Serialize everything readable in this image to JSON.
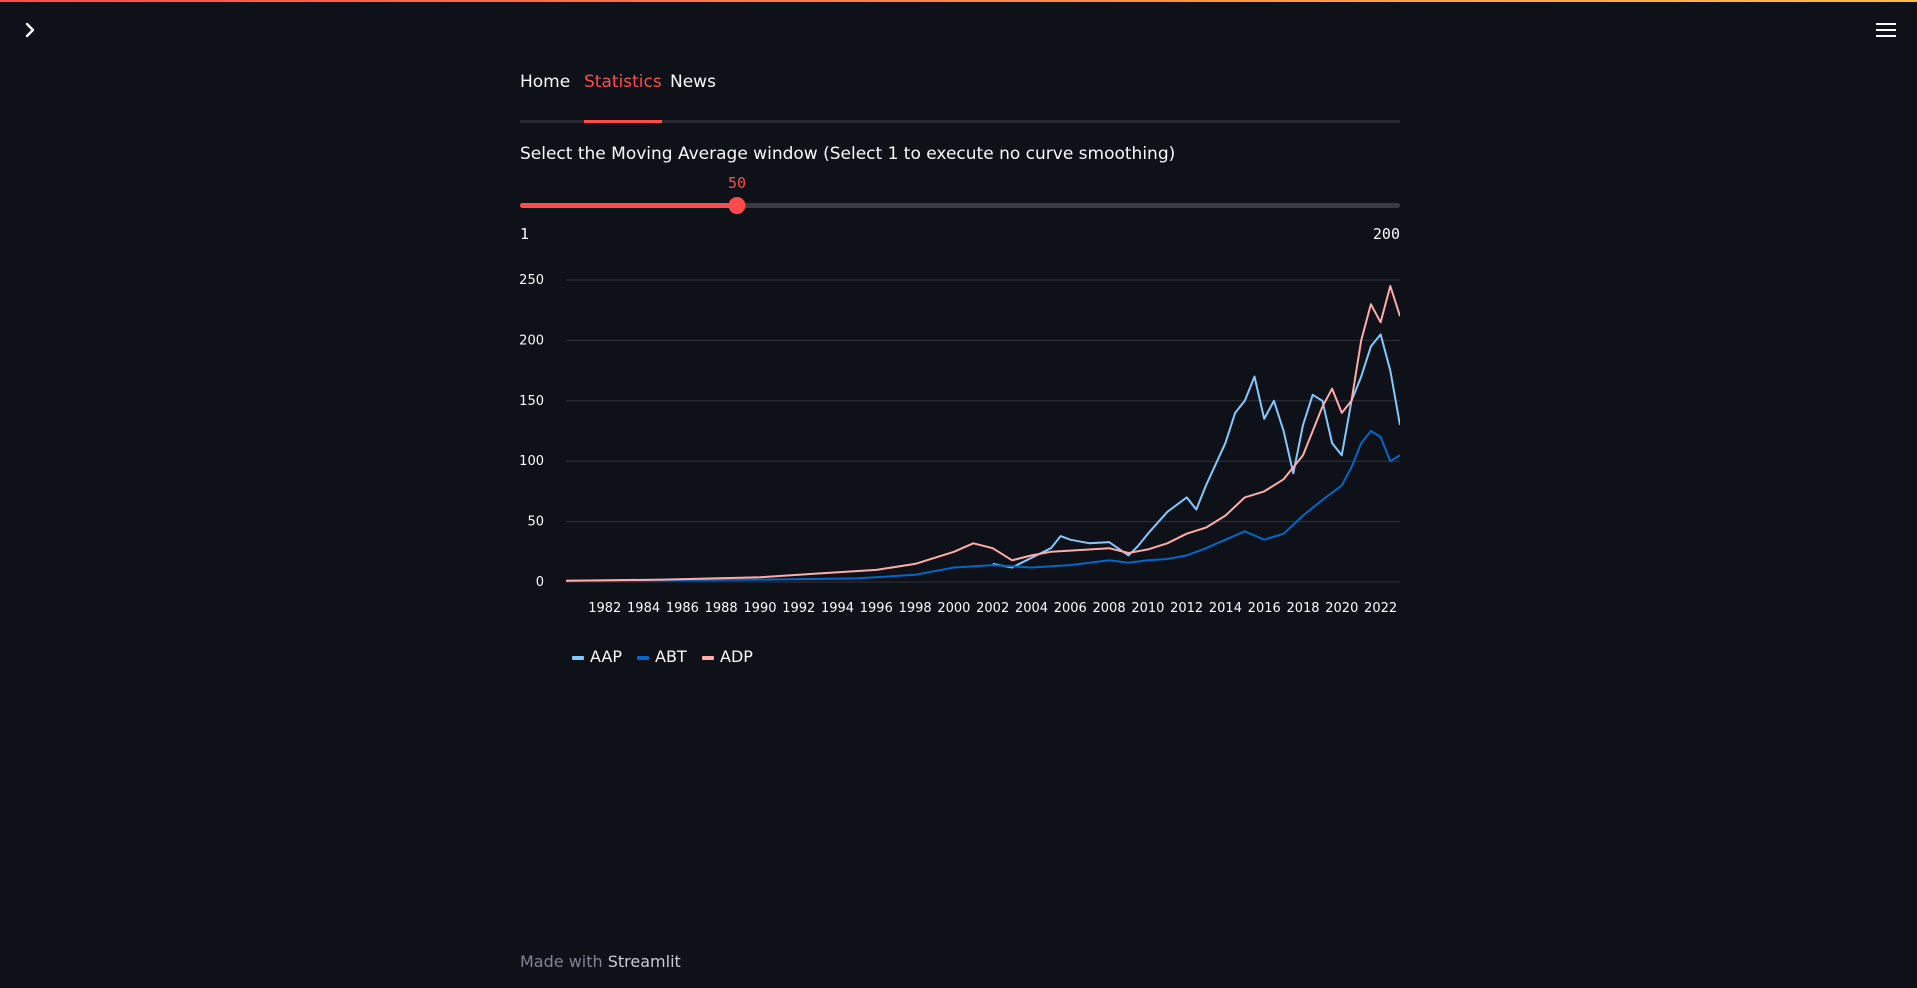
{
  "app": {
    "tabs": [
      {
        "label": "Home",
        "active": false
      },
      {
        "label": "Statistics",
        "active": true
      },
      {
        "label": "News",
        "active": false
      }
    ],
    "slider": {
      "label": "Select the Moving Average window (Select 1 to execute no curve smoothing)",
      "value": "50",
      "min": "1",
      "max": "200"
    },
    "footer": {
      "prefix": "Made with",
      "brand": "Streamlit"
    },
    "icons": {
      "sidebar_toggle": "chevron-right-icon",
      "menu": "hamburger-menu-icon"
    },
    "colors": {
      "background": "#0e1117",
      "accent": "#ff4b4b"
    }
  },
  "chart_data": {
    "type": "line",
    "title": "",
    "xlabel": "",
    "ylabel": "",
    "xlim": [
      1980,
      2023
    ],
    "ylim": [
      0,
      250
    ],
    "yticks": [
      0,
      50,
      100,
      150,
      200,
      250
    ],
    "xticks": [
      "1982",
      "1984",
      "1986",
      "1988",
      "1990",
      "1992",
      "1994",
      "1996",
      "1998",
      "2000",
      "2002",
      "2004",
      "2006",
      "2008",
      "2010",
      "2012",
      "2014",
      "2016",
      "2018",
      "2020",
      "2022"
    ],
    "grid": true,
    "legend": "bottom-left",
    "series": [
      {
        "name": "AAP",
        "color": "#83c9ff",
        "x": [
          2002.0,
          2003.0,
          2004.0,
          2005.0,
          2005.5,
          2006.0,
          2007.0,
          2008.0,
          2009.0,
          2009.5,
          2010.0,
          2011.0,
          2012.0,
          2012.5,
          2013.0,
          2014.0,
          2014.5,
          2015.0,
          2015.5,
          2016.0,
          2016.5,
          2017.0,
          2017.5,
          2018.0,
          2018.5,
          2019.0,
          2019.5,
          2020.0,
          2020.5,
          2021.0,
          2021.5,
          2022.0,
          2022.5,
          2023.0
        ],
        "y": [
          15,
          12,
          20,
          28,
          38,
          35,
          32,
          33,
          22,
          30,
          40,
          58,
          70,
          60,
          80,
          115,
          140,
          150,
          170,
          135,
          150,
          125,
          90,
          130,
          155,
          150,
          115,
          105,
          150,
          170,
          195,
          205,
          175,
          130
        ]
      },
      {
        "name": "ABT",
        "color": "#0068c9",
        "x": [
          1980.0,
          1985.0,
          1990.0,
          1995.0,
          1998.0,
          2000.0,
          2002.0,
          2004.0,
          2006.0,
          2008.0,
          2009.0,
          2010.0,
          2011.0,
          2012.0,
          2013.0,
          2014.0,
          2015.0,
          2016.0,
          2017.0,
          2018.0,
          2019.0,
          2020.0,
          2020.5,
          2021.0,
          2021.5,
          2022.0,
          2022.5,
          2023.0
        ],
        "y": [
          1,
          1.5,
          2,
          3,
          6,
          12,
          14,
          12,
          14,
          18,
          16,
          18,
          19,
          22,
          28,
          35,
          42,
          35,
          40,
          55,
          68,
          80,
          95,
          115,
          125,
          120,
          100,
          105
        ]
      },
      {
        "name": "ADP",
        "color": "#ffabab",
        "x": [
          1980.0,
          1985.0,
          1990.0,
          1993.0,
          1996.0,
          1998.0,
          2000.0,
          2001.0,
          2002.0,
          2003.0,
          2004.0,
          2005.0,
          2006.0,
          2008.0,
          2009.0,
          2010.0,
          2011.0,
          2012.0,
          2013.0,
          2014.0,
          2015.0,
          2016.0,
          2017.0,
          2018.0,
          2019.0,
          2019.5,
          2020.0,
          2020.5,
          2021.0,
          2021.5,
          2022.0,
          2022.5,
          2023.0
        ],
        "y": [
          1,
          2,
          4,
          7,
          10,
          15,
          25,
          32,
          28,
          18,
          22,
          25,
          26,
          28,
          24,
          27,
          32,
          40,
          45,
          55,
          70,
          75,
          85,
          105,
          145,
          160,
          140,
          150,
          200,
          230,
          215,
          245,
          220
        ]
      }
    ]
  }
}
